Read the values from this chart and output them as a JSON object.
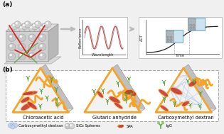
{
  "bg_color": "#f0f0f0",
  "title_a": "(a)",
  "title_b": "(b)",
  "orange_color": "#F5A42A",
  "red_color": "#C8382A",
  "green_dot_color": "#88bb55",
  "green_line_color": "#449933",
  "dextran_net_color": "#b8cce8",
  "sphere_color": "#c8c8c8",
  "sphere_highlight": "#e8e8e8",
  "sphere_edge": "#888888",
  "wave_gray": "#999999",
  "wave_red": "#dd3333",
  "curve_color": "#222222",
  "sensor_blue": "#6aabcc",
  "sensor_bg": "#d4e8f4",
  "arrow_color": "#bbbbbb",
  "tri_face": "#f0f0f0",
  "tri_left": "#d8d8d8",
  "tri_right": "#c8c8c8",
  "tri_edge": "#bbbbbb",
  "tri_orange_border": "#F5A42A",
  "panel_b_bg": "#ffffff",
  "label_fontsize": 4.8,
  "small_fontsize": 3.8,
  "panel_label_fontsize": 6.5
}
